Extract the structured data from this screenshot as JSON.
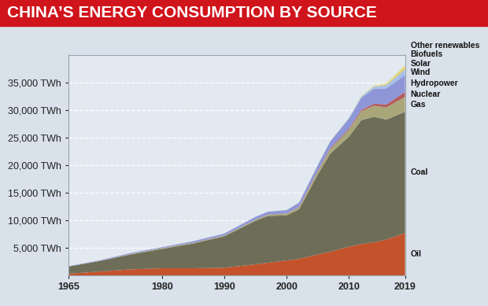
{
  "chart_data": {
    "type": "area",
    "title": "CHINA’S ENERGY CONSUMPTION BY SOURCE",
    "stacked": true,
    "grid": true,
    "x": [
      1965,
      1970,
      1975,
      1980,
      1985,
      1990,
      1995,
      1997,
      2000,
      2002,
      2005,
      2007,
      2010,
      2012,
      2014,
      2016,
      2019
    ],
    "xlim": [
      1965,
      2019
    ],
    "xticks": [
      1965,
      1980,
      1990,
      2000,
      2010,
      2019
    ],
    "ylim": [
      0,
      40000
    ],
    "yticks": [
      {
        "value": 5000,
        "label": "5,000 TWh"
      },
      {
        "value": 10000,
        "label": "10,000 TWh"
      },
      {
        "value": 15000,
        "label": "15,000 TWh"
      },
      {
        "value": 20000,
        "label": "20,000 TWh"
      },
      {
        "value": 25000,
        "label": "25,000 TWh"
      },
      {
        "value": 30000,
        "label": "30,000 TWh"
      },
      {
        "value": 35000,
        "label": "35,000 TWh"
      }
    ],
    "series": [
      {
        "name": "Oil",
        "color": "#c4532c",
        "values": [
          300,
          700,
          1100,
          1300,
          1300,
          1400,
          2000,
          2300,
          2700,
          3000,
          3800,
          4300,
          5200,
          5700,
          6000,
          6500,
          7700
        ]
      },
      {
        "name": "Coal",
        "color": "#6e6e58",
        "values": [
          1300,
          1900,
          2700,
          3500,
          4500,
          5700,
          7900,
          8500,
          8200,
          9000,
          14500,
          17800,
          20000,
          22500,
          22800,
          21800,
          22000
        ]
      },
      {
        "name": "Gas",
        "color": "#a9a77a",
        "values": [
          10,
          30,
          90,
          150,
          150,
          160,
          200,
          230,
          300,
          380,
          550,
          800,
          1250,
          1600,
          2000,
          2200,
          2700
        ]
      },
      {
        "name": "Nuclear",
        "color": "#b55d5d",
        "values": [
          0,
          0,
          0,
          0,
          0,
          0,
          40,
          40,
          50,
          70,
          150,
          180,
          210,
          260,
          370,
          550,
          900
        ]
      },
      {
        "name": "Hydropower",
        "color": "#8e96d8",
        "values": [
          60,
          100,
          170,
          160,
          250,
          330,
          480,
          500,
          600,
          750,
          1000,
          1250,
          1800,
          2200,
          2700,
          2900,
          3100
        ]
      },
      {
        "name": "Wind",
        "color": "#a9c1e6",
        "values": [
          0,
          0,
          0,
          0,
          0,
          0,
          0,
          0,
          0,
          2,
          5,
          15,
          120,
          250,
          400,
          600,
          1000
        ]
      },
      {
        "name": "Solar",
        "color": "#e9cf6e",
        "values": [
          0,
          0,
          0,
          0,
          0,
          0,
          0,
          0,
          0,
          0,
          0,
          0,
          2,
          10,
          60,
          180,
          550
        ]
      },
      {
        "name": "Biofuels",
        "color": "#c6d98f",
        "values": [
          0,
          0,
          0,
          0,
          0,
          0,
          0,
          0,
          0,
          5,
          10,
          15,
          20,
          25,
          30,
          30,
          40
        ]
      },
      {
        "name": "Other renewables",
        "color": "#dde8a8",
        "values": [
          0,
          0,
          0,
          0,
          0,
          0,
          0,
          10,
          15,
          20,
          30,
          40,
          60,
          90,
          140,
          200,
          280
        ]
      }
    ]
  }
}
